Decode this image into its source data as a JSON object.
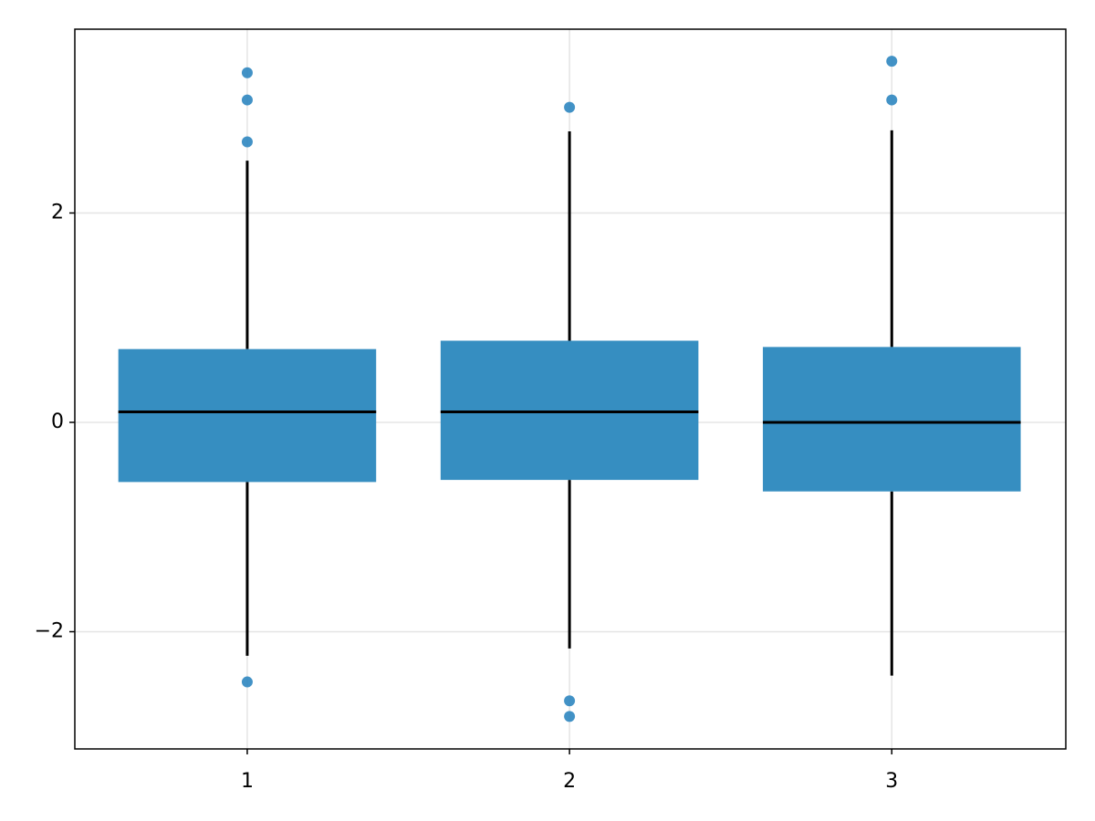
{
  "chart_data": {
    "type": "box",
    "x": [
      1,
      2,
      3
    ],
    "boxes": [
      {
        "min": -2.23,
        "q1": -0.57,
        "median": 0.1,
        "q3": 0.7,
        "max": 2.5,
        "outliers": [
          3.34,
          3.08,
          2.68,
          -2.48
        ]
      },
      {
        "min": -2.16,
        "q1": -0.55,
        "median": 0.1,
        "q3": 0.78,
        "max": 2.78,
        "outliers": [
          3.01,
          -2.66,
          -2.81
        ]
      },
      {
        "min": -2.42,
        "q1": -0.66,
        "median": 0.0,
        "q3": 0.72,
        "max": 2.79,
        "outliers": [
          3.45,
          3.08
        ]
      }
    ],
    "color": "#368ec1",
    "outlier_color": "#2e86c0",
    "xlim": [
      0.465,
      3.54
    ],
    "xticks": [
      1,
      2,
      3
    ],
    "ylim": [
      -3.12,
      3.756
    ],
    "yticks": [
      {
        "value": -2,
        "label": "−2"
      },
      0,
      2
    ],
    "grid": true
  }
}
